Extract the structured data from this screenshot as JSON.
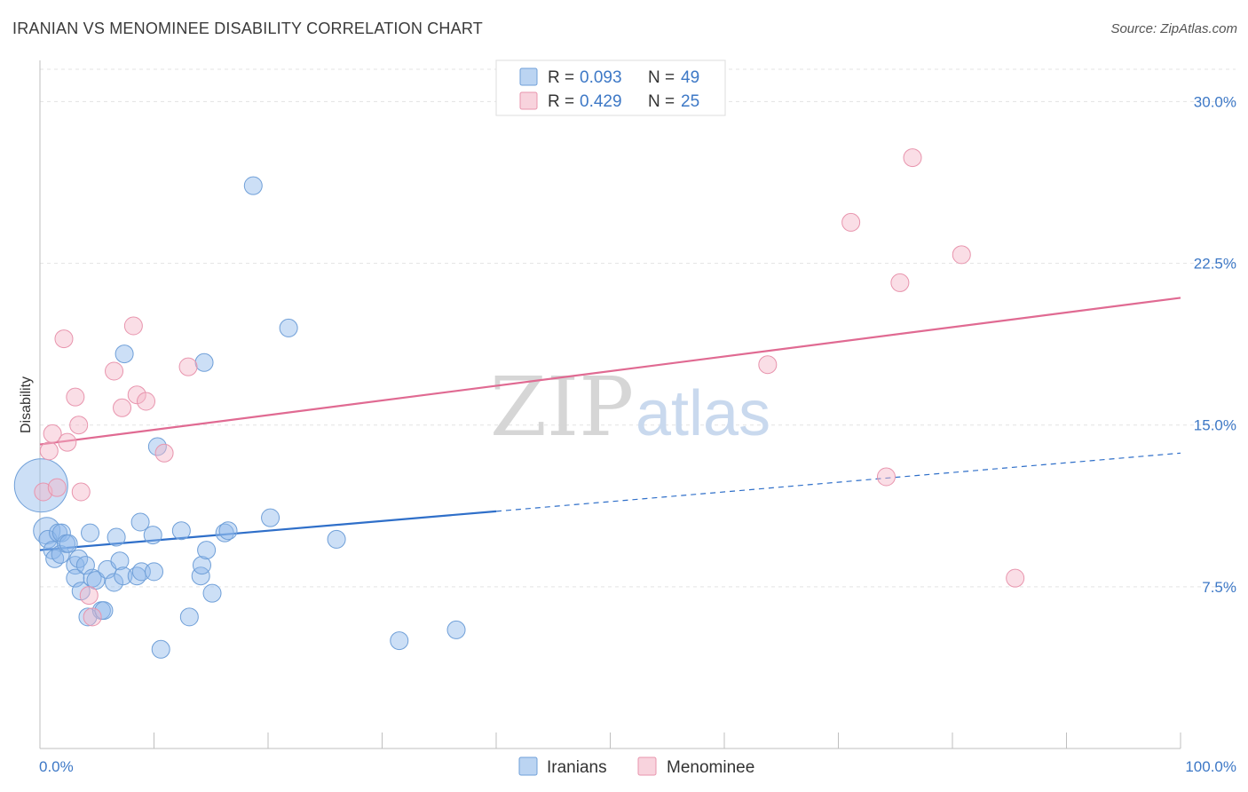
{
  "header": {
    "title": "IRANIAN VS MENOMINEE DISABILITY CORRELATION CHART",
    "source": "Source: ZipAtlas.com"
  },
  "chart_data": {
    "type": "scatter",
    "ylabel": "Disability",
    "xlim": [
      0,
      100
    ],
    "ylim": [
      0,
      31.5
    ],
    "yticks": [
      7.5,
      15.0,
      22.5,
      30.0
    ],
    "ytick_labels": [
      "7.5%",
      "15.0%",
      "22.5%",
      "30.0%"
    ],
    "xtick_labels": [
      "0.0%",
      "100.0%"
    ],
    "grid": true,
    "watermark": {
      "part1": "ZIP",
      "part2": "atlas"
    },
    "legend": {
      "placement": "top-center",
      "rows": [
        {
          "r_label": "R =",
          "r_value": "0.093",
          "n_label": "N =",
          "n_value": "49"
        },
        {
          "r_label": "R =",
          "r_value": "0.429",
          "n_label": "N =",
          "n_value": "25"
        }
      ]
    },
    "series": [
      {
        "name": "Iranians",
        "color": "#8db8ea",
        "stroke": "#6f9fd8",
        "trend_color": "#2f6fc9",
        "trend": {
          "x0": 0,
          "y0": 9.2,
          "x1": 40,
          "y1": 11.0,
          "dash_to_x": 100,
          "dash_to_y": 13.7
        },
        "points": [
          [
            0.1,
            12.2
          ],
          [
            0.6,
            10.1
          ],
          [
            0.7,
            9.7
          ],
          [
            1.1,
            9.2
          ],
          [
            1.3,
            8.8
          ],
          [
            1.6,
            10.0
          ],
          [
            1.8,
            9.0
          ],
          [
            1.9,
            10.0
          ],
          [
            2.3,
            9.5
          ],
          [
            2.5,
            9.5
          ],
          [
            3.1,
            8.5
          ],
          [
            3.1,
            7.9
          ],
          [
            3.4,
            8.8
          ],
          [
            3.6,
            7.3
          ],
          [
            4.0,
            8.5
          ],
          [
            4.2,
            6.1
          ],
          [
            4.4,
            10.0
          ],
          [
            4.6,
            7.9
          ],
          [
            4.9,
            7.8
          ],
          [
            5.4,
            6.4
          ],
          [
            5.6,
            6.4
          ],
          [
            5.9,
            8.3
          ],
          [
            6.5,
            7.7
          ],
          [
            6.7,
            9.8
          ],
          [
            7.0,
            8.7
          ],
          [
            7.3,
            8.0
          ],
          [
            8.5,
            8.0
          ],
          [
            8.8,
            10.5
          ],
          [
            8.9,
            8.2
          ],
          [
            9.9,
            9.9
          ],
          [
            10.0,
            8.2
          ],
          [
            10.3,
            14.0
          ],
          [
            10.6,
            4.6
          ],
          [
            12.4,
            10.1
          ],
          [
            13.1,
            6.1
          ],
          [
            14.1,
            8.0
          ],
          [
            14.2,
            8.5
          ],
          [
            14.4,
            17.9
          ],
          [
            14.6,
            9.2
          ],
          [
            15.1,
            7.2
          ],
          [
            16.2,
            10.0
          ],
          [
            16.5,
            10.1
          ],
          [
            18.7,
            26.1
          ],
          [
            20.2,
            10.7
          ],
          [
            21.8,
            19.5
          ],
          [
            26.0,
            9.7
          ],
          [
            7.4,
            18.3
          ],
          [
            31.5,
            5.0
          ],
          [
            36.5,
            5.5
          ]
        ],
        "sizes": [
          30,
          15,
          10,
          10,
          10,
          10,
          10,
          10,
          10,
          10,
          10,
          10,
          10,
          10,
          10,
          10,
          10,
          10,
          10,
          10,
          10,
          10,
          10,
          10,
          10,
          10,
          10,
          10,
          10,
          10,
          10,
          10,
          10,
          10,
          10,
          10,
          10,
          10,
          10,
          10,
          10,
          10,
          10,
          10,
          10,
          10,
          10,
          10,
          10
        ]
      },
      {
        "name": "Menominee",
        "color": "#f4b5c7",
        "stroke": "#e894ad",
        "trend_color": "#e06a92",
        "trend": {
          "x0": 0,
          "y0": 14.1,
          "x1": 100,
          "y1": 20.9
        },
        "points": [
          [
            0.3,
            11.9
          ],
          [
            0.8,
            13.8
          ],
          [
            1.1,
            14.6
          ],
          [
            1.5,
            12.1
          ],
          [
            2.1,
            19.0
          ],
          [
            2.4,
            14.2
          ],
          [
            3.1,
            16.3
          ],
          [
            3.4,
            15.0
          ],
          [
            3.6,
            11.9
          ],
          [
            4.3,
            7.1
          ],
          [
            4.6,
            6.1
          ],
          [
            6.5,
            17.5
          ],
          [
            7.2,
            15.8
          ],
          [
            8.2,
            19.6
          ],
          [
            8.5,
            16.4
          ],
          [
            9.3,
            16.1
          ],
          [
            10.9,
            13.7
          ],
          [
            13.0,
            17.7
          ],
          [
            63.8,
            17.8
          ],
          [
            71.1,
            24.4
          ],
          [
            74.2,
            12.6
          ],
          [
            75.4,
            21.6
          ],
          [
            76.5,
            27.4
          ],
          [
            80.8,
            22.9
          ],
          [
            85.5,
            7.9
          ]
        ],
        "sizes": [
          10,
          10,
          10,
          10,
          10,
          10,
          10,
          10,
          10,
          10,
          10,
          10,
          10,
          10,
          10,
          10,
          10,
          10,
          10,
          10,
          10,
          10,
          10,
          10,
          10
        ]
      }
    ]
  }
}
